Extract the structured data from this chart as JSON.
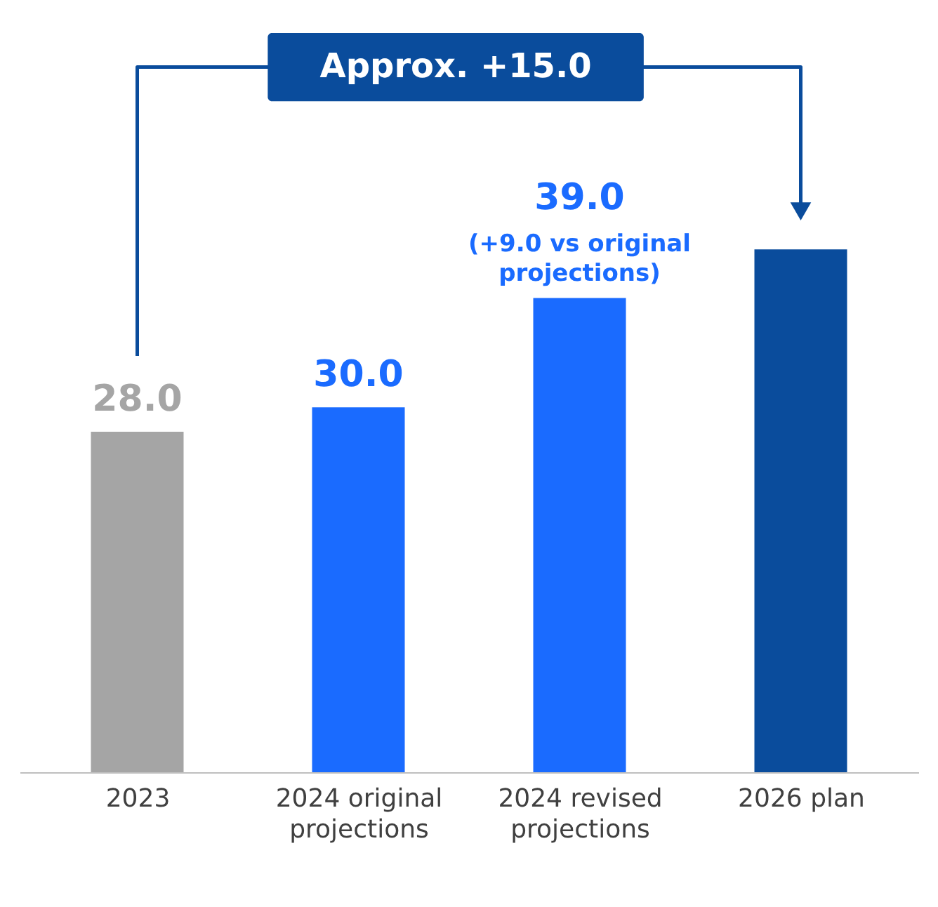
{
  "chart_data": {
    "type": "bar",
    "categories": [
      "2023",
      "2024 original projections",
      "2024 revised projections",
      "2026 plan"
    ],
    "values": [
      28.0,
      30.0,
      39.0,
      43.0
    ],
    "colors": [
      "#a5a5a5",
      "#1a6bff",
      "#1a6bff",
      "#0a4c9c"
    ],
    "value_labels": [
      "28.0",
      "30.0",
      "39.0",
      null
    ],
    "annotations": [
      "Approx. +15.0",
      {
        "text": "(+9.0 vs original projections)",
        "x": "2024 revised projections",
        "y": 39.0
      }
    ],
    "grid": false
  }
}
